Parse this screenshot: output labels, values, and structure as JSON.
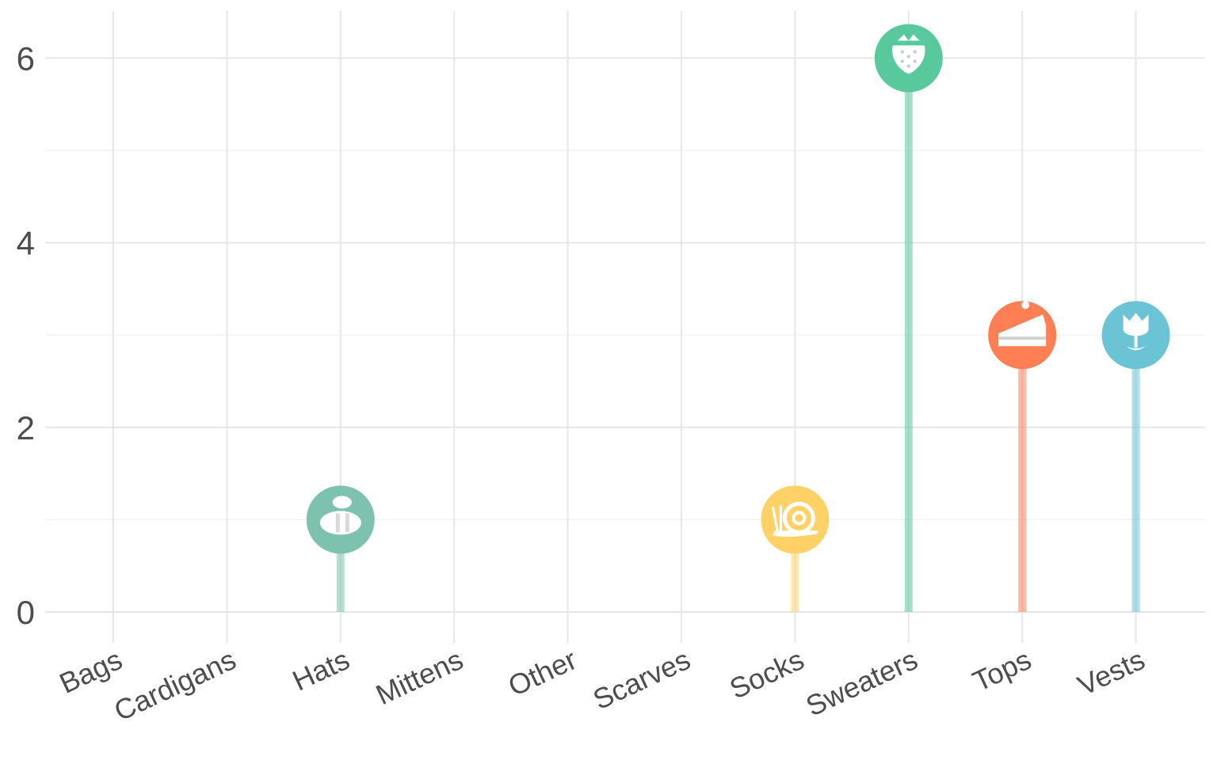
{
  "chart_data": {
    "type": "lollipop",
    "categories": [
      "Bags",
      "Cardigans",
      "Hats",
      "Mittens",
      "Other",
      "Scarves",
      "Socks",
      "Sweaters",
      "Tops",
      "Vests"
    ],
    "values": [
      0,
      0,
      1,
      0,
      0,
      0,
      1,
      6,
      3,
      3
    ],
    "ylim": [
      -0.1,
      6.5
    ],
    "yticks": [
      0,
      2,
      4,
      6
    ],
    "yminor": [
      1,
      3,
      5
    ],
    "grid": true,
    "legend": "none",
    "points": [
      {
        "category": "Hats",
        "value": 1,
        "color": "#7cc2ae",
        "icon": "bee-icon"
      },
      {
        "category": "Socks",
        "value": 1,
        "color": "#ffd166",
        "icon": "snail-icon"
      },
      {
        "category": "Sweaters",
        "value": 6,
        "color": "#57c99c",
        "icon": "strawberry-icon"
      },
      {
        "category": "Tops",
        "value": 3,
        "color": "#ff7f55",
        "icon": "cake-slice-icon"
      },
      {
        "category": "Vests",
        "value": 3,
        "color": "#6bc3d6",
        "icon": "tulip-icon"
      }
    ]
  }
}
